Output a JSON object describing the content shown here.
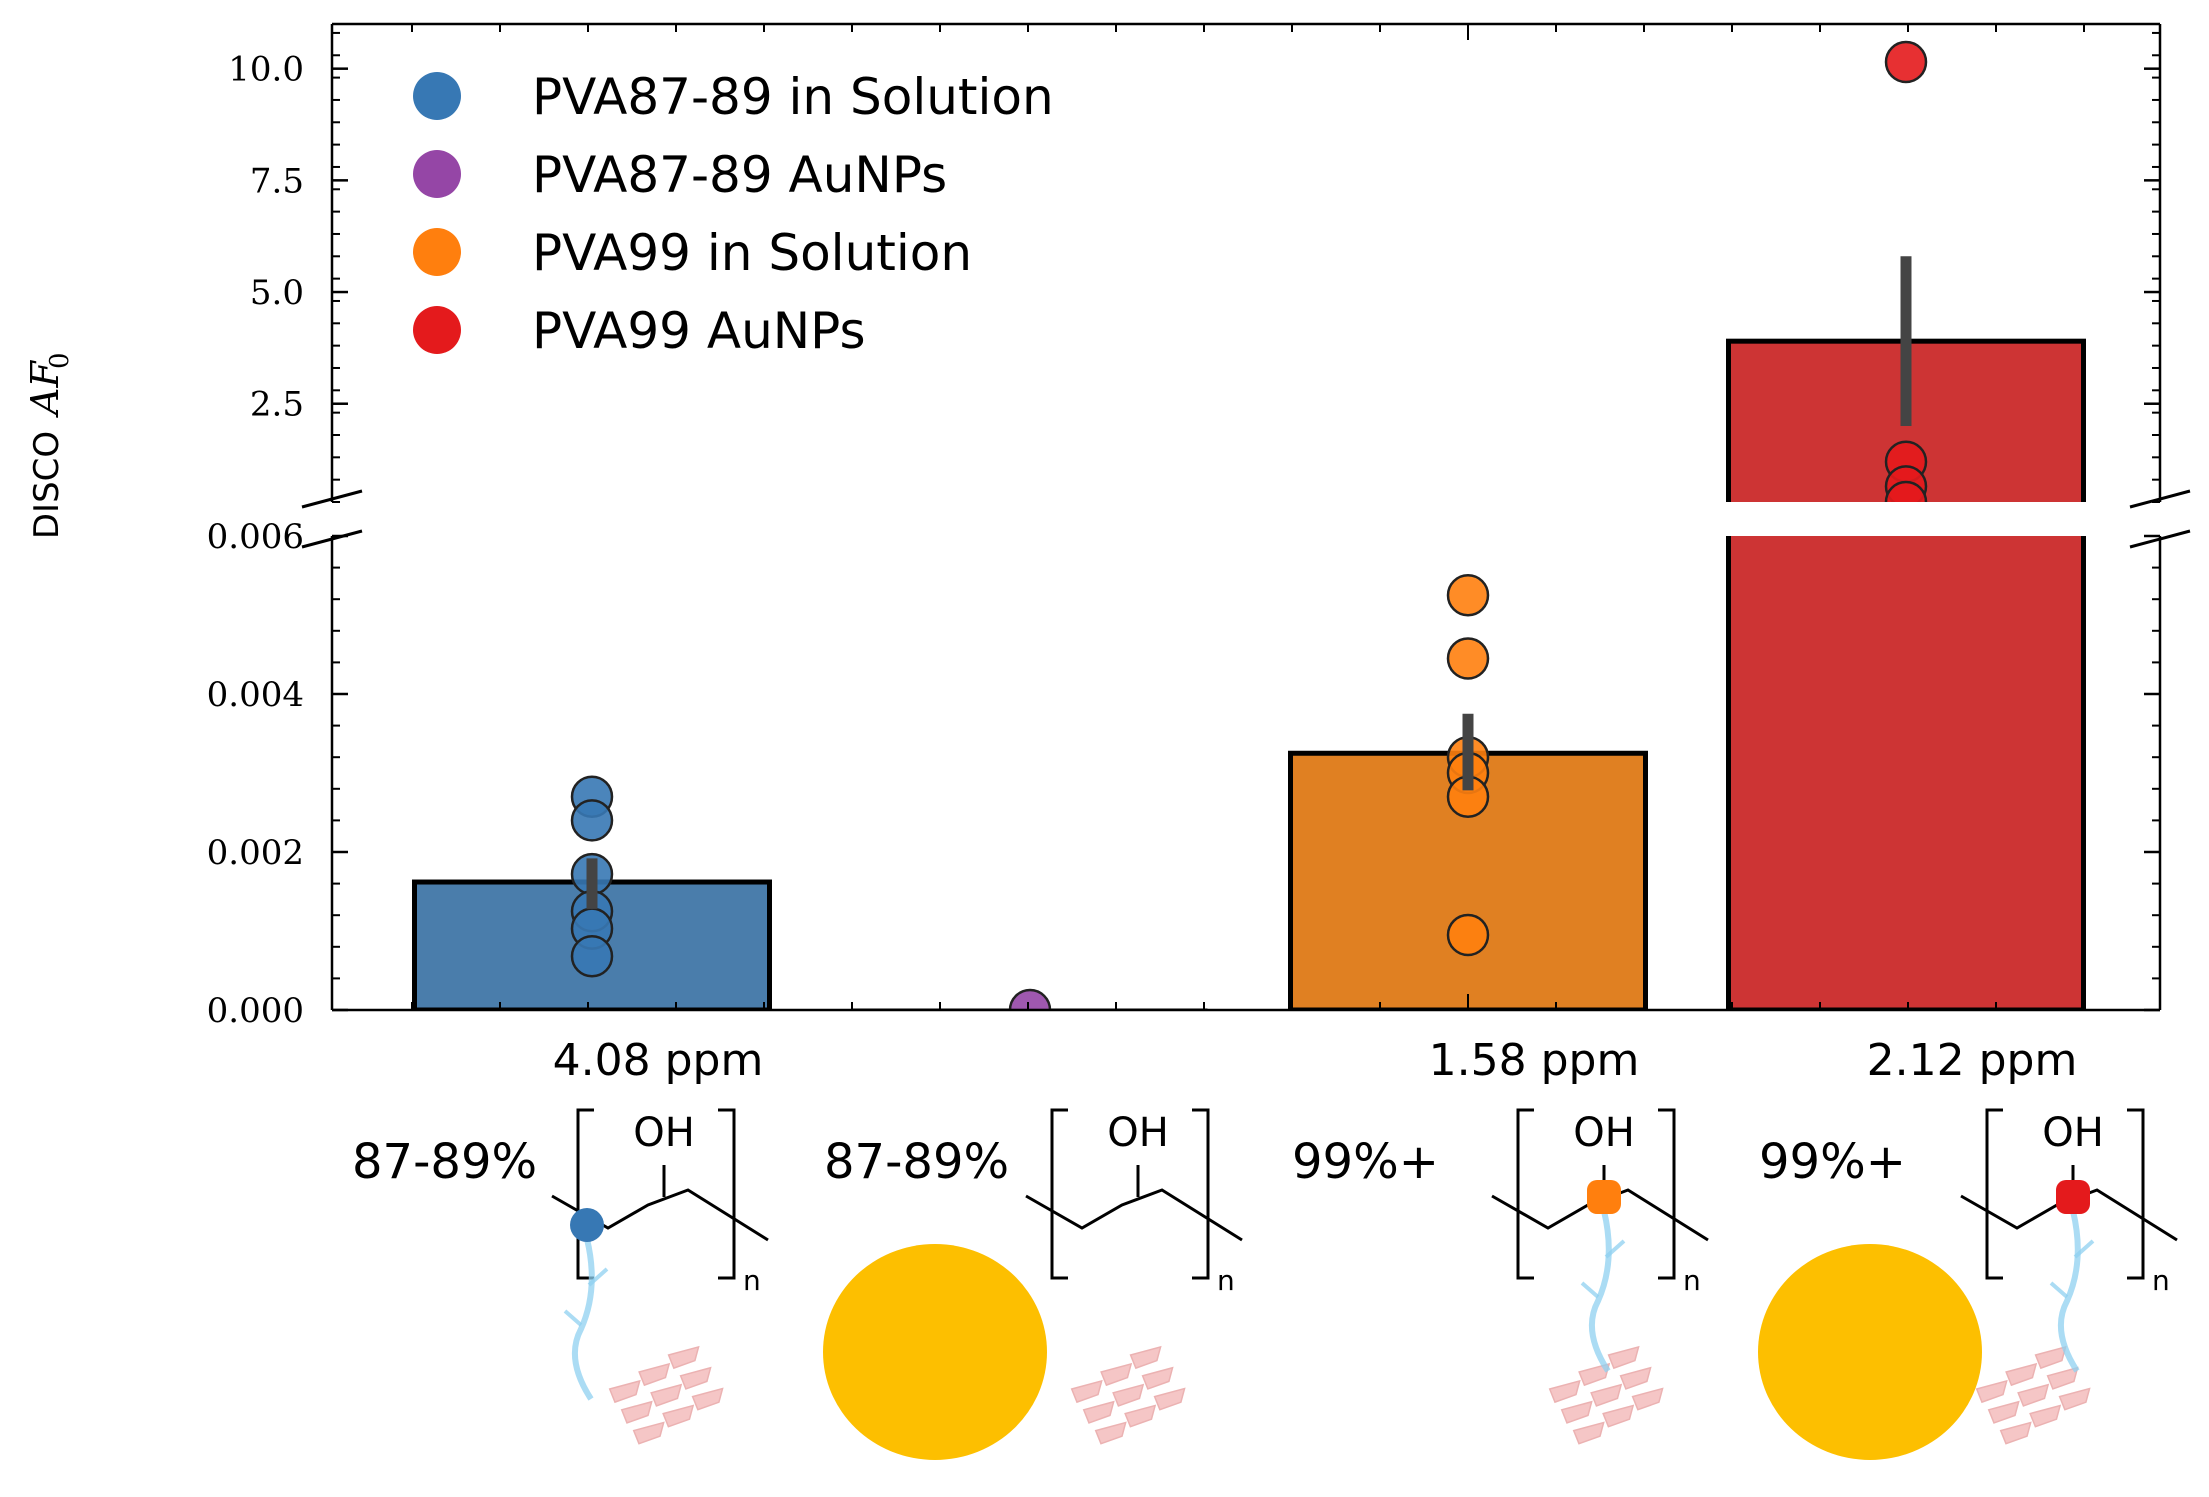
{
  "chart_data": {
    "type": "bar",
    "ylabel_text": "DISCO",
    "ylabel_math": "AF",
    "ylabel_subscript": "0",
    "broken_axis": true,
    "upper_panel": {
      "ylim": [
        0.3,
        11.0
      ],
      "ticks": [
        2.5,
        5.0,
        7.5,
        10.0
      ],
      "tick_labels": [
        "2.5",
        "5.0",
        "7.5",
        "10.0"
      ]
    },
    "lower_panel": {
      "ylim": [
        0.0,
        0.006
      ],
      "ticks": [
        0.0,
        0.002,
        0.004,
        0.006
      ],
      "tick_labels": [
        "0.000",
        "0.002",
        "0.004",
        "0.006"
      ]
    },
    "categories": [
      "4.08 ppm",
      "",
      "1.58 ppm",
      "2.12 ppm"
    ],
    "series": [
      {
        "name": "PVA87-89 in Solution",
        "color": "#3778b4",
        "bar_color": "#4a7dab",
        "bar_value": 0.00162,
        "error": [
          0.00128,
          0.00192
        ],
        "points": [
          0.0027,
          0.0024,
          0.00172,
          0.00125,
          0.00103,
          0.00068
        ]
      },
      {
        "name": "PVA87-89 AuNPs",
        "color": "#9546a6",
        "bar_color": "#9546a6",
        "bar_value": 0.0,
        "error": null,
        "points": [
          0.0
        ]
      },
      {
        "name": "PVA99 in Solution",
        "color": "#ff7f0e",
        "bar_color": "#e08022",
        "bar_value": 0.00325,
        "error": [
          0.00278,
          0.00375
        ],
        "points": [
          0.00525,
          0.00445,
          0.0032,
          0.003,
          0.0027,
          0.00095
        ]
      },
      {
        "name": "PVA99 AuNPs",
        "color": "#e41a1c",
        "bar_color": "#cd3434",
        "bar_value": 3.9,
        "error": [
          2.0,
          5.8
        ],
        "points": [
          10.15,
          1.2,
          0.65,
          0.3
        ]
      }
    ]
  },
  "schematic": {
    "panels": [
      {
        "percent": "87-89%",
        "group": "OH",
        "subscript": "n",
        "marker_color": "#3778b4",
        "nanoparticle": false
      },
      {
        "percent": "87-89%",
        "group": "OH",
        "subscript": "n",
        "marker_color": null,
        "nanoparticle": true
      },
      {
        "percent": "99%+",
        "group": "OH",
        "subscript": "n",
        "marker_color": "#ff7f0e",
        "nanoparticle": false
      },
      {
        "percent": "99%+",
        "group": "OH",
        "subscript": "n",
        "marker_color": "#e41a1c",
        "nanoparticle": true
      }
    ],
    "nanoparticle_color": "#fdbf00",
    "protein_color": "#f3b8b8",
    "contact_color": "#8fd0f0"
  }
}
